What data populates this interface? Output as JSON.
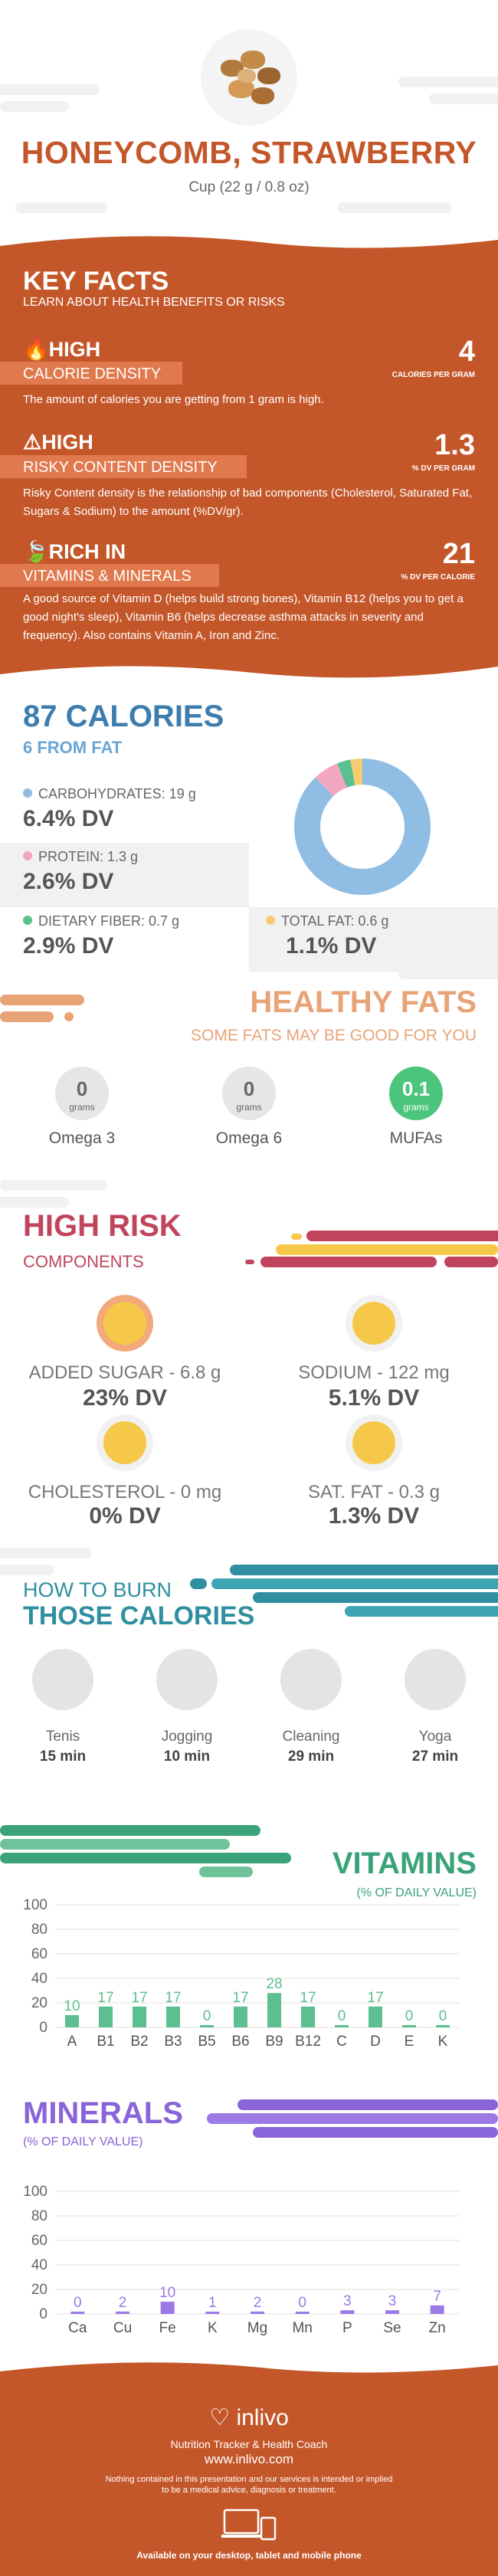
{
  "header": {
    "title": "HONEYCOMB, STRAWBERRY",
    "serving": "Cup (22 g / 0.8 oz)"
  },
  "key_facts": {
    "title": "KEY FACTS",
    "subtitle": "LEARN ABOUT HEALTH BENEFITS OR RISKS",
    "items": [
      {
        "level": "HIGH",
        "label": "CALORIE DENSITY",
        "value": "4",
        "unit": "CALORIES PER GRAM",
        "description": "The amount of calories you are getting from 1 gram is high."
      },
      {
        "level": "HIGH",
        "label": "RISKY CONTENT DENSITY",
        "value": "1.3",
        "unit": "% DV PER GRAM",
        "description": "Risky Content density is the relationship of bad components (Cholesterol, Saturated Fat, Sugars & Sodium) to the amount (%DV/gr)."
      },
      {
        "level": "RICH  IN",
        "label": "VITAMINS & MINERALS",
        "value": "21",
        "unit": "% DV PER CALORIE",
        "description": "A good source of Vitamin D (helps build strong bones), Vitamin B12 (helps you to get a good night's sleep), Vitamin B6 (helps decrease asthma attacks in severity and frequency). Also contains Vitamin A, Iron and Zinc."
      }
    ]
  },
  "calories": {
    "title": "87 CALORIES",
    "subtitle": "6 FROM FAT",
    "macros": [
      {
        "name": "CARBOHYDRATES: 19 g",
        "dv": "6.4% DV",
        "color": "#8fbde3",
        "share": 87.4
      },
      {
        "name": "PROTEIN: 1.3 g",
        "dv": "2.6% DV",
        "color": "#f3a6c0",
        "share": 6.0
      },
      {
        "name": "DIETARY FIBER: 0.7 g",
        "dv": "2.9% DV",
        "color": "#5cbf8f",
        "share": 3.2
      },
      {
        "name": "TOTAL FAT: 0.6 g",
        "dv": "1.1% DV",
        "color": "#f5cc72",
        "share": 2.8
      }
    ]
  },
  "healthy_fats": {
    "title": "HEALTHY FATS",
    "subtitle": "SOME FATS MAY BE GOOD FOR YOU",
    "items": [
      {
        "value": "0",
        "unit": "grams",
        "name": "Omega 3"
      },
      {
        "value": "0",
        "unit": "grams",
        "name": "Omega 6"
      },
      {
        "value": "0.1",
        "unit": "grams",
        "name": "MUFAs"
      }
    ]
  },
  "high_risk": {
    "title": "HIGH RISK",
    "subtitle": "COMPONENTS",
    "items": [
      {
        "name": "ADDED SUGAR - 6.8 g",
        "dv": "23% DV"
      },
      {
        "name": "SODIUM - 122 mg",
        "dv": "5.1% DV"
      },
      {
        "name": "CHOLESTEROL - 0 mg",
        "dv": "0% DV"
      },
      {
        "name": "SAT. FAT - 0.3 g",
        "dv": "1.3% DV"
      }
    ]
  },
  "burn": {
    "title_line1": "HOW TO BURN",
    "title_line2": "THOSE CALORIES",
    "activities": [
      {
        "name": "Tenis",
        "time": "15 min"
      },
      {
        "name": "Jogging",
        "time": "10 min"
      },
      {
        "name": "Cleaning",
        "time": "29 min"
      },
      {
        "name": "Yoga",
        "time": "27 min"
      }
    ]
  },
  "chart_data": [
    {
      "type": "bar",
      "title": "VITAMINS",
      "subtitle": "(% OF DAILY VALUE)",
      "categories": [
        "A",
        "B1",
        "B2",
        "B3",
        "B5",
        "B6",
        "B9",
        "B12",
        "C",
        "D",
        "E",
        "K"
      ],
      "values": [
        10,
        17,
        17,
        17,
        0,
        17,
        28,
        17,
        0,
        17,
        0,
        0
      ],
      "ylim": [
        0,
        100
      ],
      "yticks": [
        0,
        20,
        40,
        60,
        80,
        100
      ],
      "color": "#5cbf8f",
      "grid": true
    },
    {
      "type": "bar",
      "title": "MINERALS",
      "subtitle": "(% OF DAILY VALUE)",
      "categories": [
        "Ca",
        "Cu",
        "Fe",
        "K",
        "Mg",
        "Mn",
        "P",
        "Se",
        "Zn"
      ],
      "values": [
        0,
        2,
        10,
        1,
        2,
        0,
        3,
        3,
        7
      ],
      "ylim": [
        0,
        100
      ],
      "yticks": [
        0,
        20,
        40,
        60,
        80,
        100
      ],
      "color": "#9b7ae6",
      "grid": true
    }
  ],
  "footer": {
    "brand": "inlivo",
    "tagline": "Nutrition Tracker & Health Coach",
    "url": "www.inlivo.com",
    "disclaimer_line1": "Nothing contained in this presentation and our services is intended or implied",
    "disclaimer_line2": "to be a medical advice, diagnosis or treatment.",
    "devices": "Available on your desktop, tablet and mobile phone"
  }
}
